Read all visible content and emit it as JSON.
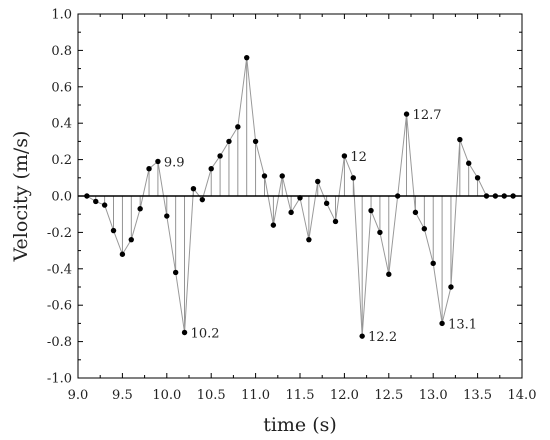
{
  "chart_data": {
    "type": "line",
    "xlabel": "time  (s)",
    "ylabel": "Velocity  (m/s)",
    "xlim": [
      9.0,
      14.0
    ],
    "ylim": [
      -1.0,
      1.0
    ],
    "xticks": [
      "9.0",
      "9.5",
      "10.0",
      "10.5",
      "11.0",
      "11.5",
      "12.0",
      "12.5",
      "13.0",
      "13.5",
      "14.0"
    ],
    "yticks": [
      "1.0",
      "0.8",
      "0.6",
      "0.4",
      "0.2",
      "0.0",
      "-0.2",
      "-0.4",
      "-0.6",
      "-0.8",
      "-1.0"
    ],
    "grid": false,
    "line_color": "#999999",
    "stem_color": "#888888",
    "marker_color": "#000000",
    "points": [
      {
        "x": 9.1,
        "y": 0.0
      },
      {
        "x": 9.2,
        "y": -0.03
      },
      {
        "x": 9.3,
        "y": -0.05
      },
      {
        "x": 9.4,
        "y": -0.19
      },
      {
        "x": 9.5,
        "y": -0.32
      },
      {
        "x": 9.6,
        "y": -0.24
      },
      {
        "x": 9.7,
        "y": -0.07
      },
      {
        "x": 9.8,
        "y": 0.15
      },
      {
        "x": 9.9,
        "y": 0.19
      },
      {
        "x": 10.0,
        "y": -0.11
      },
      {
        "x": 10.1,
        "y": -0.42
      },
      {
        "x": 10.2,
        "y": -0.75
      },
      {
        "x": 10.3,
        "y": 0.04
      },
      {
        "x": 10.4,
        "y": -0.02
      },
      {
        "x": 10.5,
        "y": 0.15
      },
      {
        "x": 10.6,
        "y": 0.22
      },
      {
        "x": 10.7,
        "y": 0.3
      },
      {
        "x": 10.8,
        "y": 0.38
      },
      {
        "x": 10.9,
        "y": 0.76
      },
      {
        "x": 11.0,
        "y": 0.3
      },
      {
        "x": 11.1,
        "y": 0.11
      },
      {
        "x": 11.2,
        "y": -0.16
      },
      {
        "x": 11.3,
        "y": 0.11
      },
      {
        "x": 11.4,
        "y": -0.09
      },
      {
        "x": 11.5,
        "y": -0.01
      },
      {
        "x": 11.6,
        "y": -0.24
      },
      {
        "x": 11.7,
        "y": 0.08
      },
      {
        "x": 11.8,
        "y": -0.04
      },
      {
        "x": 11.9,
        "y": -0.14
      },
      {
        "x": 12.0,
        "y": 0.22
      },
      {
        "x": 12.1,
        "y": 0.1
      },
      {
        "x": 12.2,
        "y": -0.77
      },
      {
        "x": 12.3,
        "y": -0.08
      },
      {
        "x": 12.4,
        "y": -0.2
      },
      {
        "x": 12.5,
        "y": -0.43
      },
      {
        "x": 12.6,
        "y": 0.0
      },
      {
        "x": 12.7,
        "y": 0.45
      },
      {
        "x": 12.8,
        "y": -0.09
      },
      {
        "x": 12.9,
        "y": -0.18
      },
      {
        "x": 13.0,
        "y": -0.37
      },
      {
        "x": 13.1,
        "y": -0.7
      },
      {
        "x": 13.2,
        "y": -0.5
      },
      {
        "x": 13.3,
        "y": 0.31
      },
      {
        "x": 13.4,
        "y": 0.18
      },
      {
        "x": 13.5,
        "y": 0.1
      },
      {
        "x": 13.6,
        "y": 0.0
      },
      {
        "x": 13.7,
        "y": 0.0
      },
      {
        "x": 13.8,
        "y": 0.0
      },
      {
        "x": 13.9,
        "y": 0.0
      }
    ],
    "annotations": [
      {
        "text": "9.9",
        "x": 9.9,
        "y": 0.19,
        "anchor": "right"
      },
      {
        "text": "10.2",
        "x": 10.2,
        "y": -0.75,
        "anchor": "right"
      },
      {
        "text": "12",
        "x": 12.0,
        "y": 0.22,
        "anchor": "right"
      },
      {
        "text": "12.2",
        "x": 12.2,
        "y": -0.77,
        "anchor": "right"
      },
      {
        "text": "12.7",
        "x": 12.7,
        "y": 0.45,
        "anchor": "right"
      },
      {
        "text": "13.1",
        "x": 13.1,
        "y": -0.7,
        "anchor": "right"
      }
    ]
  }
}
